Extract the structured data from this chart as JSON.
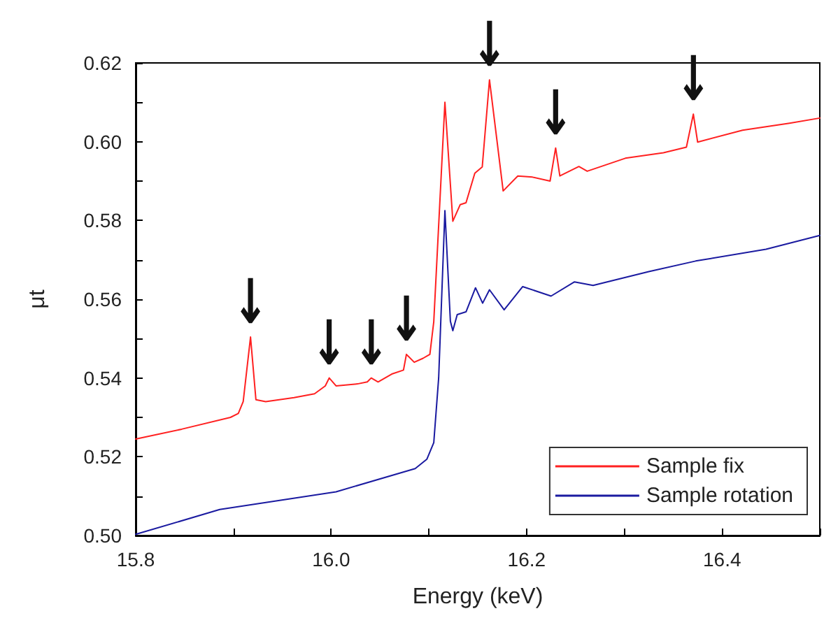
{
  "chart_data": {
    "type": "line",
    "xlabel": "Energy (keV)",
    "ylabel": "μt",
    "xlim": [
      15.8,
      16.5
    ],
    "ylim": [
      0.5,
      0.62
    ],
    "xticks": [
      15.8,
      {
        "value": 15.9,
        "label": null
      },
      {
        "value": 16.0,
        "label": "16.0"
      },
      {
        "value": 16.1,
        "label": null
      },
      16.2,
      {
        "value": 16.3,
        "label": null
      },
      16.4,
      {
        "value": 16.5,
        "label": null
      }
    ],
    "yticks": [
      {
        "value": 0.5,
        "label": "0.50"
      },
      {
        "value": 0.51,
        "label": null
      },
      0.52,
      {
        "value": 0.53,
        "label": null
      },
      0.54,
      {
        "value": 0.55,
        "label": null
      },
      0.56,
      {
        "value": 0.57,
        "label": null
      },
      0.58,
      {
        "value": 0.59,
        "label": null
      },
      {
        "value": 0.6,
        "label": "0.60"
      },
      {
        "value": 0.61,
        "label": null
      },
      0.62
    ],
    "grid": false,
    "legend": "bottom right",
    "marker": "none",
    "line_style": "solid",
    "series": [
      {
        "name": "Sample fix",
        "color": "#ff2020",
        "x": [
          15.8,
          15.847,
          15.897,
          15.905,
          15.91,
          15.9175,
          15.923,
          15.933,
          15.962,
          15.983,
          15.994,
          15.998,
          16.005,
          16.027,
          16.037,
          16.041,
          16.048,
          16.062,
          16.074,
          16.077,
          16.085,
          16.094,
          16.101,
          16.105,
          16.1164,
          16.1245,
          16.132,
          16.138,
          16.147,
          16.1546,
          16.162,
          16.176,
          16.191,
          16.206,
          16.224,
          16.2297,
          16.234,
          16.2535,
          16.262,
          16.301,
          16.34,
          16.3635,
          16.3706,
          16.375,
          16.421,
          16.469,
          16.5
        ],
        "values": [
          0.5245,
          0.527,
          0.53,
          0.531,
          0.534,
          0.5504,
          0.5345,
          0.534,
          0.535,
          0.536,
          0.538,
          0.54,
          0.538,
          0.5385,
          0.539,
          0.54,
          0.539,
          0.541,
          0.542,
          0.546,
          0.544,
          0.545,
          0.546,
          0.5543,
          0.61,
          0.5798,
          0.584,
          0.5845,
          0.592,
          0.5936,
          0.6157,
          0.5875,
          0.5913,
          0.591,
          0.59,
          0.5984,
          0.5913,
          0.5937,
          0.5925,
          0.5958,
          0.5972,
          0.5986,
          0.607,
          0.5999,
          0.6029,
          0.6047,
          0.606
        ]
      },
      {
        "name": "Sample rotation",
        "color": "#1a1aa0",
        "x": [
          15.8,
          15.886,
          16.005,
          16.086,
          16.098,
          16.105,
          16.11,
          16.1164,
          16.122,
          16.1245,
          16.129,
          16.138,
          16.1477,
          16.155,
          16.162,
          16.177,
          16.196,
          16.225,
          16.249,
          16.268,
          16.325,
          16.373,
          16.445,
          16.5
        ],
        "values": [
          0.5003,
          0.5066,
          0.5111,
          0.517,
          0.5194,
          0.5236,
          0.54,
          0.5825,
          0.5544,
          0.552,
          0.5561,
          0.5568,
          0.5629,
          0.559,
          0.5624,
          0.5573,
          0.5632,
          0.5608,
          0.5644,
          0.5635,
          0.567,
          0.5697,
          0.5727,
          0.5762
        ]
      }
    ],
    "annotations": [
      {
        "text": "↓",
        "x": 15.9175,
        "y": 0.5504
      },
      {
        "text": "↓",
        "x": 15.998,
        "y": 0.54
      },
      {
        "text": "↓",
        "x": 16.041,
        "y": 0.54
      },
      {
        "text": "↓",
        "x": 16.077,
        "y": 0.546
      },
      {
        "text": "↓",
        "x": 16.162,
        "y": 0.6157
      },
      {
        "text": "↓",
        "x": 16.2297,
        "y": 0.5984
      },
      {
        "text": "↓",
        "x": 16.3706,
        "y": 0.607
      }
    ]
  }
}
